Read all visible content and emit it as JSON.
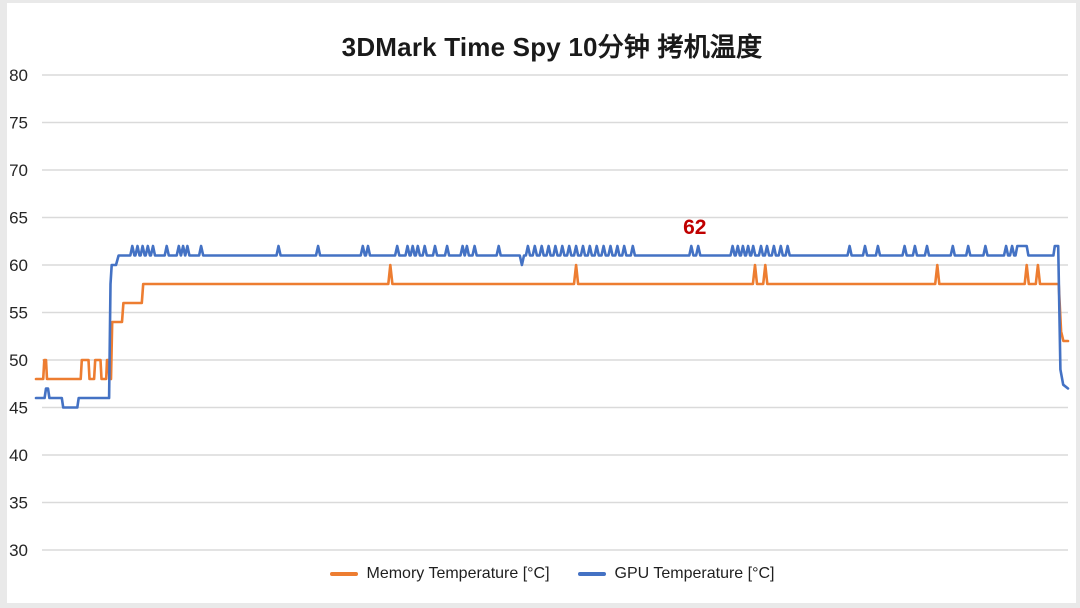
{
  "chart_data": {
    "type": "line",
    "title": "3DMark Time Spy 10分钟 拷机温度",
    "x_range": [
      0,
      600
    ],
    "x_tick_labels": [],
    "y_range": [
      30,
      80
    ],
    "y_ticks": [
      80,
      75,
      70,
      65,
      60,
      55,
      50,
      45,
      40,
      35,
      30
    ],
    "grid": true,
    "grid_color": "#dadada",
    "axis_label_color": "#262626",
    "legend_position": "bottom",
    "annotation": {
      "text": "62",
      "t": 383,
      "v": 64,
      "color": "#c00000"
    },
    "series": [
      {
        "name": "Memory Temperature [°C]",
        "color": "#ed7d31",
        "base_segments": [
          [
            0,
            48
          ],
          [
            4.2,
            48
          ],
          [
            4.8,
            50
          ],
          [
            5.8,
            50
          ],
          [
            6.4,
            48
          ],
          [
            26,
            48
          ],
          [
            26.6,
            50
          ],
          [
            30.5,
            50
          ],
          [
            31.1,
            48
          ],
          [
            33.8,
            48
          ],
          [
            34.4,
            50
          ],
          [
            37.5,
            50
          ],
          [
            38.1,
            48
          ],
          [
            40.8,
            48
          ],
          [
            41.3,
            50
          ],
          [
            42.1,
            50
          ],
          [
            42.7,
            48
          ],
          [
            43.6,
            48
          ],
          [
            44.3,
            54
          ],
          [
            50,
            54
          ],
          [
            50.8,
            56
          ],
          [
            61.5,
            56
          ],
          [
            62.3,
            58
          ],
          [
            594.6,
            58
          ],
          [
            596,
            53
          ],
          [
            597.3,
            52
          ],
          [
            600,
            52
          ]
        ],
        "spikes": [
          [
            206,
            60
          ],
          [
            314,
            60
          ],
          [
            418,
            60
          ],
          [
            424,
            60
          ],
          [
            524,
            60
          ],
          [
            576,
            60
          ],
          [
            582.5,
            60
          ]
        ],
        "plateau_spikes": []
      },
      {
        "name": "GPU Temperature [°C]",
        "color": "#4472c4",
        "base_segments": [
          [
            0,
            46
          ],
          [
            5,
            46
          ],
          [
            5.8,
            47
          ],
          [
            7,
            47
          ],
          [
            7.8,
            46
          ],
          [
            15,
            46
          ],
          [
            15.8,
            45
          ],
          [
            24,
            45
          ],
          [
            24.8,
            46
          ],
          [
            42.5,
            46
          ],
          [
            43.3,
            58
          ],
          [
            44,
            60
          ],
          [
            46.5,
            60
          ],
          [
            48,
            61
          ],
          [
            591.5,
            61
          ],
          [
            592.3,
            62
          ],
          [
            594.3,
            62
          ],
          [
            595.6,
            49
          ],
          [
            597.2,
            47.4
          ],
          [
            600,
            47
          ]
        ],
        "spikes": [
          [
            56,
            62
          ],
          [
            59,
            62
          ],
          [
            62,
            62
          ],
          [
            65,
            62
          ],
          [
            68,
            62
          ],
          [
            76,
            62
          ],
          [
            83,
            62
          ],
          [
            85.5,
            62
          ],
          [
            88,
            62
          ],
          [
            96,
            62
          ],
          [
            141,
            62
          ],
          [
            164,
            62
          ],
          [
            190,
            62
          ],
          [
            193,
            62
          ],
          [
            210,
            62
          ],
          [
            216,
            62
          ],
          [
            219,
            62
          ],
          [
            222,
            62
          ],
          [
            226,
            62
          ],
          [
            232,
            62
          ],
          [
            239,
            62
          ],
          [
            248,
            62
          ],
          [
            250.5,
            62
          ],
          [
            255,
            62
          ],
          [
            269,
            62
          ],
          [
            282.5,
            60
          ],
          [
            286,
            62
          ],
          [
            290,
            62
          ],
          [
            294,
            62
          ],
          [
            298,
            62
          ],
          [
            302,
            62
          ],
          [
            306,
            62
          ],
          [
            310,
            62
          ],
          [
            314,
            62
          ],
          [
            318,
            62
          ],
          [
            322,
            62
          ],
          [
            326,
            62
          ],
          [
            330,
            62
          ],
          [
            334,
            62
          ],
          [
            338,
            62
          ],
          [
            342,
            62
          ],
          [
            347,
            62
          ],
          [
            381,
            62
          ],
          [
            385,
            62
          ],
          [
            405,
            62
          ],
          [
            408,
            62
          ],
          [
            411,
            62
          ],
          [
            414,
            62
          ],
          [
            417,
            62
          ],
          [
            421.5,
            62
          ],
          [
            425,
            62
          ],
          [
            429,
            62
          ],
          [
            433,
            62
          ],
          [
            437,
            62
          ],
          [
            473,
            62
          ],
          [
            482,
            62
          ],
          [
            489.5,
            62
          ],
          [
            505,
            62
          ],
          [
            511,
            62
          ],
          [
            518,
            62
          ],
          [
            533,
            62
          ],
          [
            542,
            62
          ],
          [
            552,
            62
          ],
          [
            564,
            62
          ],
          [
            567.5,
            62
          ]
        ],
        "plateau_spikes": [
          [
            570.5,
            576,
            62
          ]
        ]
      }
    ]
  }
}
